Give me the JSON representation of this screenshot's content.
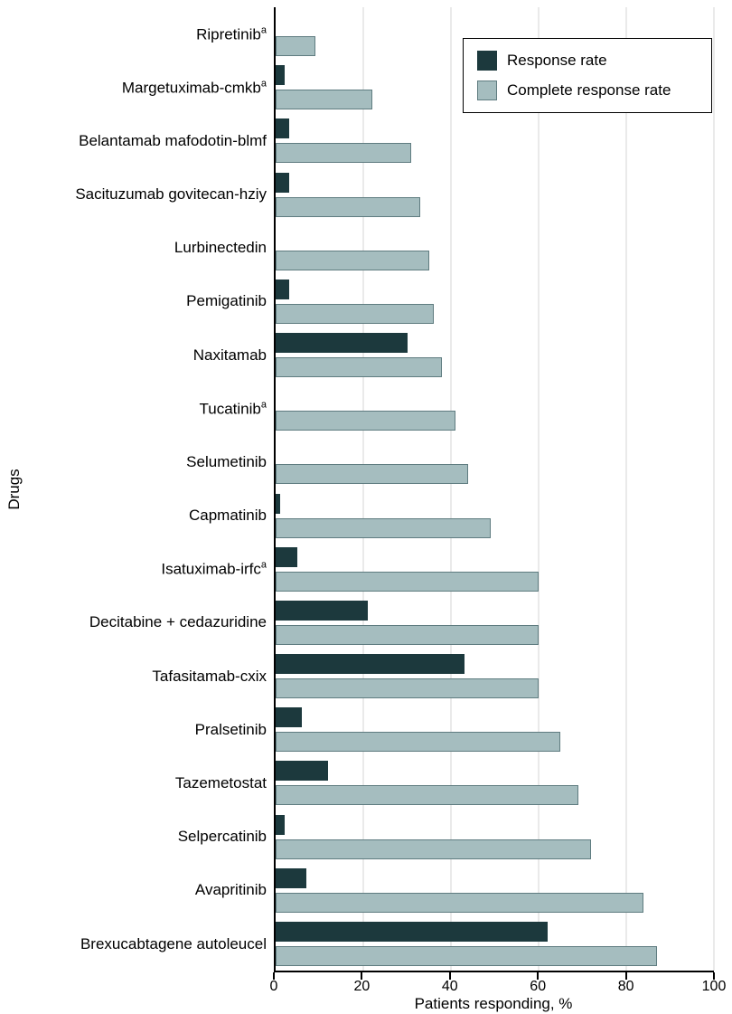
{
  "chart_data": {
    "type": "bar",
    "orientation": "horizontal",
    "title": "",
    "xlabel": "Patients responding, %",
    "ylabel": "Drugs",
    "xlim": [
      0,
      100
    ],
    "xticks": [
      0,
      20,
      40,
      60,
      80,
      100
    ],
    "grid": "vertical-on",
    "legend_position": "top-right-inside",
    "legend": [
      {
        "label": "Response rate",
        "color": "#1c393d"
      },
      {
        "label": "Complete response rate",
        "color": "#a5bdbf"
      }
    ],
    "categories": [
      {
        "label": "Ripretinib",
        "sup": "a"
      },
      {
        "label": "Margetuximab-cmkb",
        "sup": "a"
      },
      {
        "label": "Belantamab mafodotin-blmf",
        "sup": ""
      },
      {
        "label": "Sacituzumab govitecan-hziy",
        "sup": ""
      },
      {
        "label": "Lurbinectedin",
        "sup": ""
      },
      {
        "label": "Pemigatinib",
        "sup": ""
      },
      {
        "label": "Naxitamab",
        "sup": ""
      },
      {
        "label": "Tucatinib",
        "sup": "a"
      },
      {
        "label": "Selumetinib",
        "sup": ""
      },
      {
        "label": "Capmatinib",
        "sup": ""
      },
      {
        "label": "Isatuximab-irfc",
        "sup": "a"
      },
      {
        "label": "Decitabine + cedazuridine",
        "sup": ""
      },
      {
        "label": "Tafasitamab-cxix",
        "sup": ""
      },
      {
        "label": "Pralsetinib",
        "sup": ""
      },
      {
        "label": "Tazemetostat",
        "sup": ""
      },
      {
        "label": "Selpercatinib",
        "sup": ""
      },
      {
        "label": "Avapritinib",
        "sup": ""
      },
      {
        "label": "Brexucabtagene autoleucel",
        "sup": ""
      }
    ],
    "series": [
      {
        "name": "Response rate",
        "values": [
          0,
          2,
          3,
          3,
          0,
          3,
          30,
          0,
          0,
          1,
          5,
          21,
          43,
          6,
          12,
          2,
          7,
          62
        ]
      },
      {
        "name": "Complete response rate",
        "values": [
          9,
          22,
          31,
          33,
          35,
          36,
          38,
          41,
          44,
          49,
          60,
          60,
          60,
          65,
          69,
          72,
          84,
          87
        ]
      }
    ]
  },
  "colors": {
    "dark_bar": "#1c393d",
    "light_bar": "#a5bdbf",
    "light_bar_border": "#5f7c80",
    "gridline": "#d6d6d6",
    "axis": "#000000"
  }
}
